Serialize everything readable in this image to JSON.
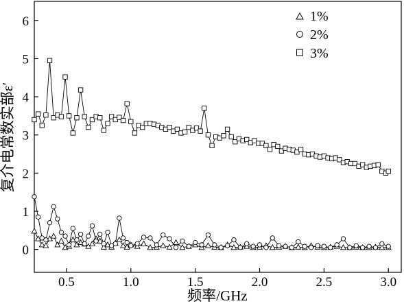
{
  "chart_data": {
    "type": "line",
    "title": "",
    "xlabel": "频率/GHz",
    "ylabel": "复介电常数实部ε′",
    "xlim": [
      0.25,
      3.1
    ],
    "ylim": [
      -0.6,
      6.5
    ],
    "xticks": [
      "0.5",
      "1.0",
      "1.5",
      "2.0",
      "2.5",
      "3.0"
    ],
    "yticks": [
      "0",
      "1",
      "2",
      "3",
      "4",
      "5",
      "6"
    ],
    "legend_position": "top-right",
    "grid": false,
    "series": [
      {
        "name": "1%",
        "marker": "triangle",
        "x": [
          0.25,
          0.28,
          0.31,
          0.34,
          0.37,
          0.4,
          0.43,
          0.46,
          0.49,
          0.52,
          0.55,
          0.58,
          0.61,
          0.64,
          0.67,
          0.7,
          0.73,
          0.76,
          0.79,
          0.82,
          0.85,
          0.88,
          0.91,
          0.94,
          0.97,
          1.0,
          1.05,
          1.1,
          1.15,
          1.2,
          1.25,
          1.3,
          1.35,
          1.4,
          1.45,
          1.5,
          1.55,
          1.6,
          1.65,
          1.7,
          1.75,
          1.8,
          1.85,
          1.9,
          1.95,
          2.0,
          2.05,
          2.1,
          2.15,
          2.2,
          2.25,
          2.3,
          2.35,
          2.4,
          2.45,
          2.5,
          2.55,
          2.6,
          2.65,
          2.7,
          2.75,
          2.8,
          2.85,
          2.9,
          2.95,
          3.0
        ],
        "y": [
          0.48,
          0.28,
          0.12,
          0.1,
          0.28,
          0.35,
          0.12,
          0.22,
          0.05,
          0.08,
          0.25,
          0.12,
          0.18,
          0.14,
          0.08,
          0.15,
          0.28,
          0.22,
          0.06,
          0.12,
          0.06,
          0.16,
          0.25,
          0.1,
          0.06,
          0.12,
          0.08,
          0.15,
          0.05,
          0.06,
          0.1,
          0.06,
          0.18,
          0.05,
          0.08,
          0.12,
          0.05,
          0.1,
          0.06,
          0.05,
          0.12,
          0.05,
          0.06,
          0.08,
          0.05,
          0.06,
          0.1,
          0.05,
          0.06,
          0.08,
          0.05,
          0.06,
          0.05,
          0.1,
          0.06,
          0.05,
          0.06,
          0.08,
          0.05,
          0.05,
          0.06,
          0.05,
          0.05,
          0.06,
          0.05,
          0.05
        ]
      },
      {
        "name": "2%",
        "marker": "circle",
        "x": [
          0.25,
          0.28,
          0.31,
          0.34,
          0.37,
          0.4,
          0.43,
          0.46,
          0.49,
          0.52,
          0.55,
          0.58,
          0.61,
          0.64,
          0.67,
          0.7,
          0.73,
          0.76,
          0.79,
          0.82,
          0.85,
          0.88,
          0.91,
          0.94,
          0.97,
          1.0,
          1.05,
          1.1,
          1.15,
          1.2,
          1.25,
          1.3,
          1.35,
          1.4,
          1.45,
          1.5,
          1.55,
          1.6,
          1.65,
          1.7,
          1.75,
          1.8,
          1.85,
          1.9,
          1.95,
          2.0,
          2.05,
          2.1,
          2.15,
          2.2,
          2.25,
          2.3,
          2.35,
          2.4,
          2.45,
          2.5,
          2.55,
          2.6,
          2.65,
          2.7,
          2.75,
          2.8,
          2.85,
          2.9,
          2.95,
          3.0
        ],
        "y": [
          1.38,
          0.85,
          0.3,
          0.25,
          0.7,
          1.12,
          0.8,
          0.45,
          0.35,
          0.12,
          0.55,
          0.25,
          0.4,
          0.15,
          0.35,
          0.62,
          0.22,
          0.4,
          0.15,
          0.45,
          0.1,
          0.15,
          0.82,
          0.3,
          0.18,
          0.1,
          0.15,
          0.32,
          0.3,
          0.12,
          0.38,
          0.28,
          0.05,
          0.22,
          0.08,
          0.18,
          0.12,
          0.38,
          0.12,
          0.05,
          0.1,
          0.25,
          0.05,
          0.15,
          0.08,
          0.12,
          0.05,
          0.3,
          0.1,
          0.08,
          0.05,
          0.2,
          0.08,
          0.05,
          0.1,
          0.08,
          0.05,
          0.12,
          0.28,
          0.05,
          0.1,
          0.05,
          0.08,
          0.05,
          0.15,
          0.08
        ]
      },
      {
        "name": "3%",
        "marker": "square",
        "x": [
          0.25,
          0.28,
          0.31,
          0.34,
          0.37,
          0.4,
          0.43,
          0.46,
          0.49,
          0.52,
          0.55,
          0.58,
          0.61,
          0.64,
          0.67,
          0.7,
          0.73,
          0.76,
          0.79,
          0.82,
          0.85,
          0.88,
          0.91,
          0.94,
          0.97,
          1.0,
          1.03,
          1.06,
          1.09,
          1.12,
          1.15,
          1.18,
          1.21,
          1.24,
          1.27,
          1.3,
          1.33,
          1.36,
          1.39,
          1.42,
          1.45,
          1.48,
          1.51,
          1.54,
          1.57,
          1.6,
          1.63,
          1.66,
          1.69,
          1.72,
          1.75,
          1.78,
          1.81,
          1.84,
          1.87,
          1.9,
          1.93,
          1.96,
          1.99,
          2.02,
          2.05,
          2.08,
          2.11,
          2.14,
          2.17,
          2.2,
          2.23,
          2.26,
          2.29,
          2.32,
          2.35,
          2.38,
          2.41,
          2.44,
          2.47,
          2.5,
          2.53,
          2.56,
          2.59,
          2.62,
          2.65,
          2.68,
          2.71,
          2.74,
          2.77,
          2.8,
          2.83,
          2.86,
          2.89,
          2.92,
          2.95,
          2.98,
          3.0
        ],
        "y": [
          3.4,
          3.55,
          3.25,
          3.52,
          4.95,
          3.45,
          3.52,
          3.48,
          4.52,
          3.5,
          3.05,
          3.45,
          4.18,
          3.48,
          3.2,
          3.4,
          3.48,
          3.45,
          3.12,
          3.3,
          3.48,
          3.4,
          3.46,
          3.38,
          3.82,
          3.35,
          3.05,
          3.25,
          3.2,
          3.3,
          3.3,
          3.28,
          3.25,
          3.2,
          3.15,
          3.2,
          3.1,
          3.15,
          3.05,
          3.08,
          3.2,
          3.12,
          3.18,
          3.1,
          3.7,
          3.0,
          2.72,
          2.95,
          2.92,
          2.98,
          3.15,
          2.95,
          2.82,
          2.9,
          2.85,
          2.88,
          2.8,
          2.85,
          2.78,
          2.78,
          2.72,
          2.62,
          2.75,
          2.7,
          2.58,
          2.65,
          2.62,
          2.6,
          2.55,
          2.62,
          2.5,
          2.48,
          2.5,
          2.45,
          2.42,
          2.45,
          2.4,
          2.38,
          2.4,
          2.35,
          2.28,
          2.3,
          2.25,
          2.25,
          2.18,
          2.22,
          2.15,
          2.18,
          2.2,
          2.22,
          2.05,
          2.0,
          2.05
        ]
      }
    ]
  }
}
